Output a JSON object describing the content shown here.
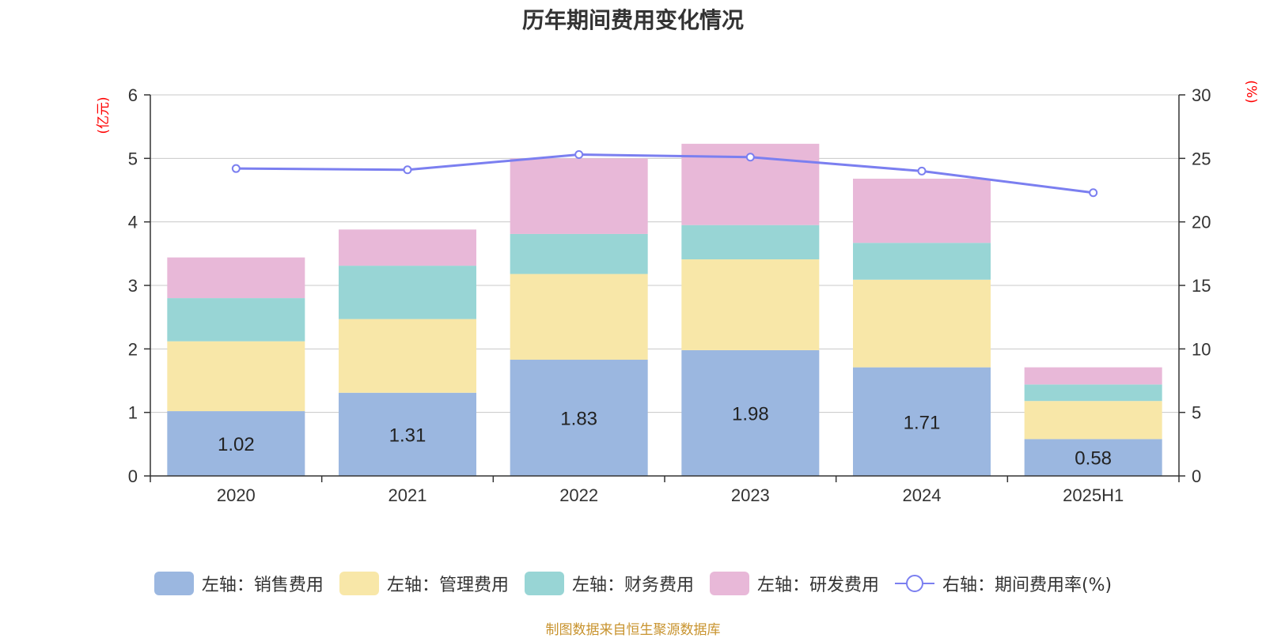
{
  "chart_data": {
    "type": "bar",
    "title": "历年期间费用变化情况",
    "categories": [
      "2020",
      "2021",
      "2022",
      "2023",
      "2024",
      "2025H1"
    ],
    "left_axis": {
      "unit": "(亿元)",
      "min": 0,
      "max": 6,
      "ticks": [
        "0",
        "1",
        "2",
        "3",
        "4",
        "5",
        "6"
      ]
    },
    "right_axis": {
      "unit": "(%)",
      "min": 0,
      "max": 30,
      "ticks": [
        "0",
        "5",
        "10",
        "15",
        "20",
        "25",
        "30"
      ]
    },
    "stacked": true,
    "grid": true,
    "legend_position": "bottom",
    "series": [
      {
        "name": "左轴：销售费用",
        "type": "bar",
        "axis": "left",
        "color": "#9bb7e0",
        "values": [
          1.02,
          1.31,
          1.83,
          1.98,
          1.71,
          0.58
        ],
        "labels": [
          "1.02",
          "1.31",
          "1.83",
          "1.98",
          "1.71",
          "0.58"
        ]
      },
      {
        "name": "左轴：管理费用",
        "type": "bar",
        "axis": "left",
        "color": "#f8e7a8",
        "values": [
          1.1,
          1.16,
          1.35,
          1.43,
          1.38,
          0.6
        ]
      },
      {
        "name": "左轴：财务费用",
        "type": "bar",
        "axis": "left",
        "color": "#98d5d5",
        "values": [
          0.68,
          0.84,
          0.63,
          0.54,
          0.58,
          0.26
        ]
      },
      {
        "name": "左轴：研发费用",
        "type": "bar",
        "axis": "left",
        "color": "#e8b8d8",
        "values": [
          0.64,
          0.57,
          1.19,
          1.28,
          1.01,
          0.27
        ]
      },
      {
        "name": "右轴：期间费用率(%)",
        "type": "line",
        "axis": "right",
        "color": "#7b7ff0",
        "values": [
          24.2,
          24.1,
          25.3,
          25.1,
          24.0,
          22.3
        ]
      }
    ]
  },
  "source": "制图数据来自恒生聚源数据库"
}
